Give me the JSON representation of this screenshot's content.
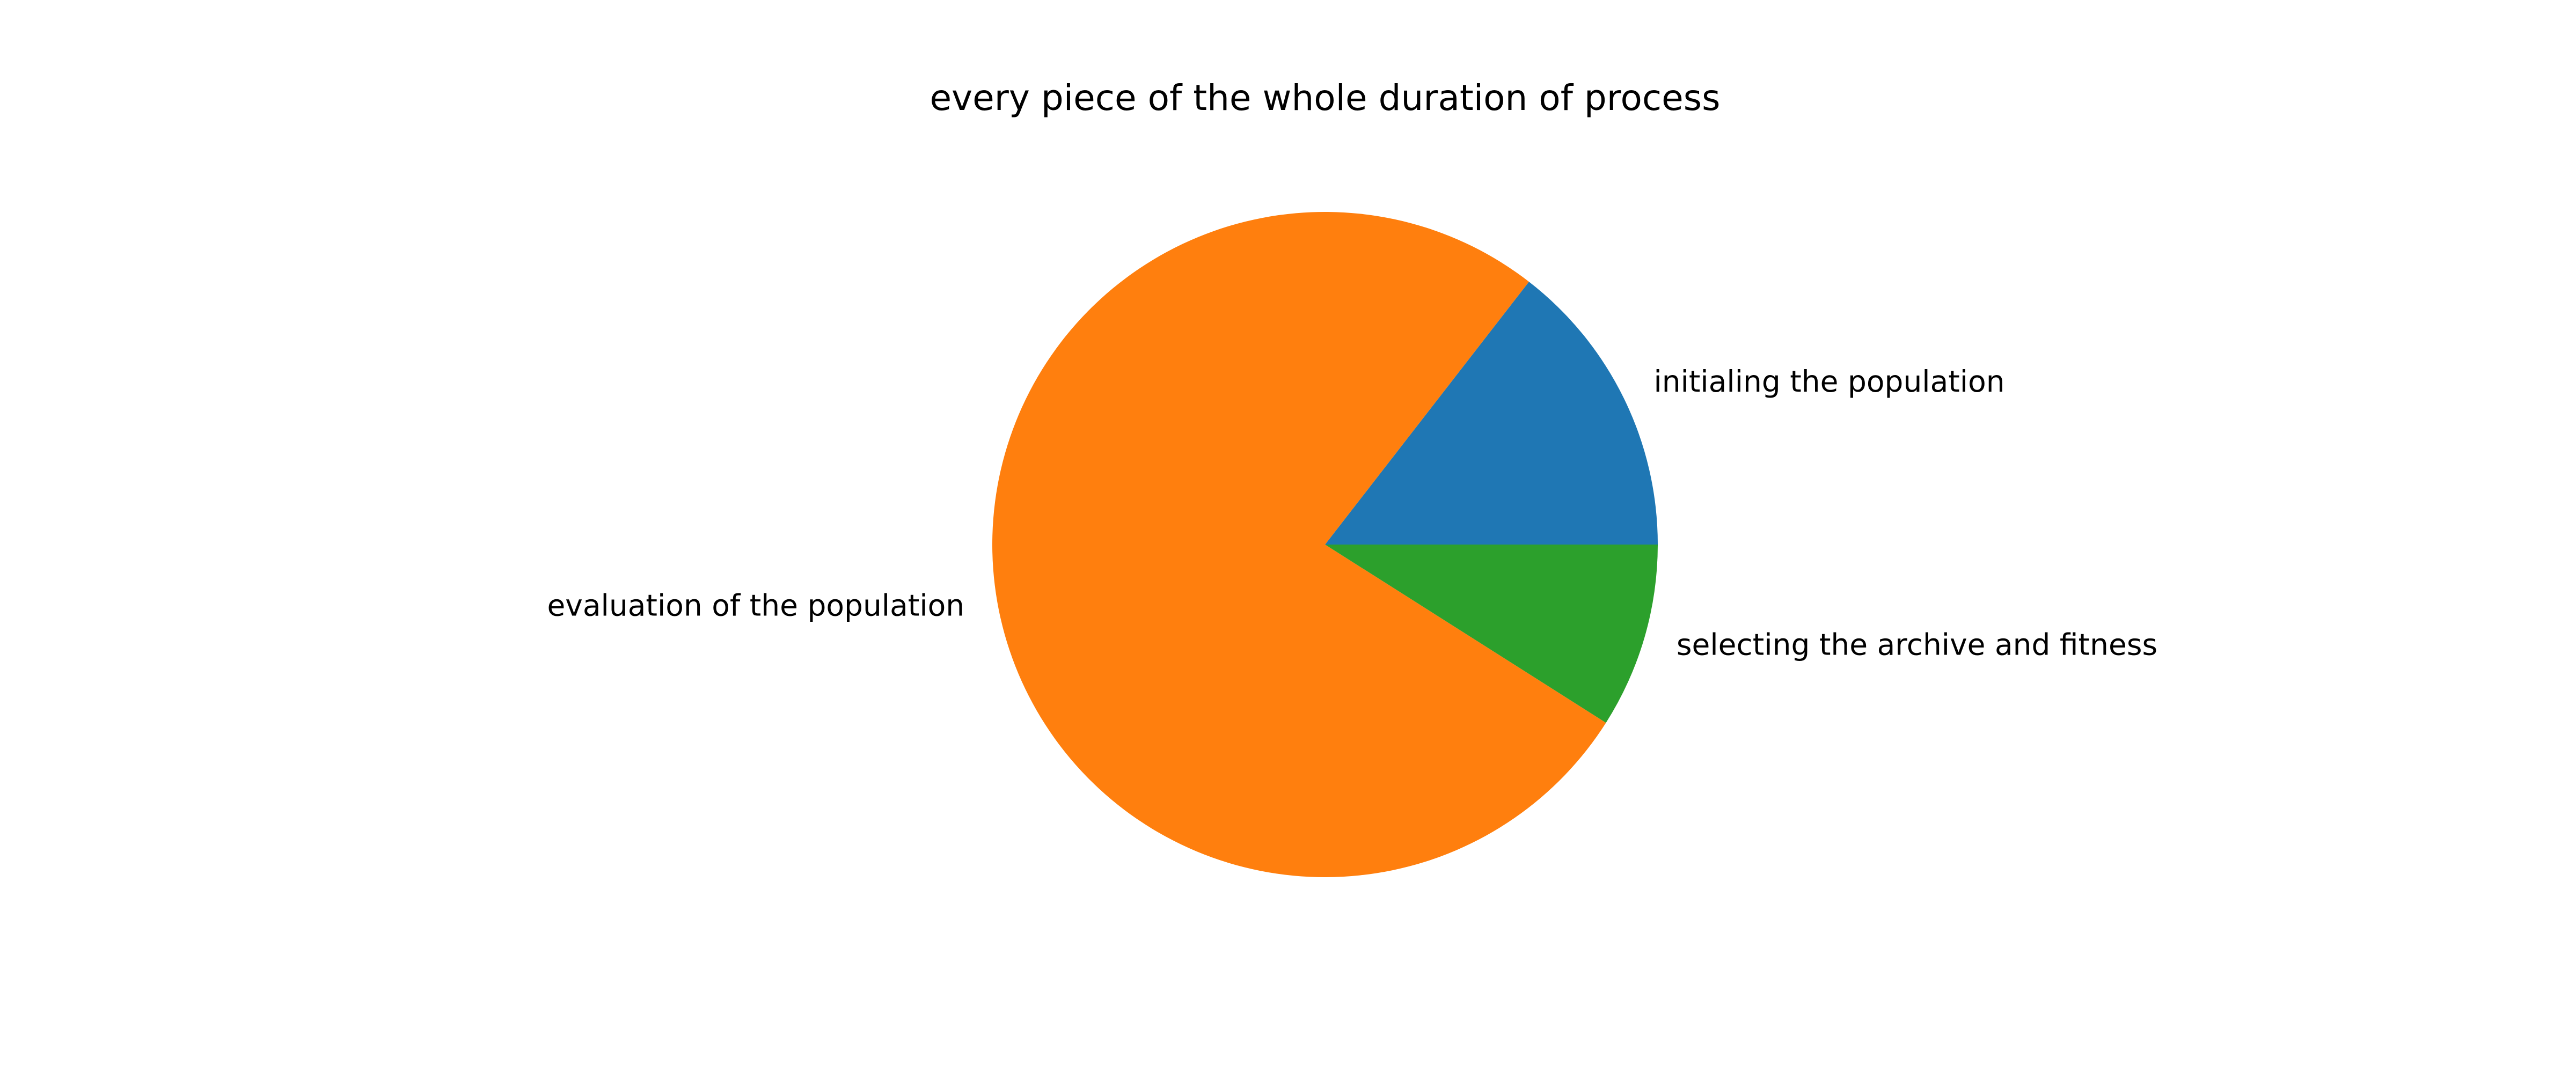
{
  "chart_data": {
    "type": "pie",
    "title": "every piece of the whole duration of process",
    "slices": [
      {
        "label": "initialing the population",
        "value": 14.5,
        "color": "#1f77b4"
      },
      {
        "label": "evaluation of the population",
        "value": 76.5,
        "color": "#ff7f0e"
      },
      {
        "label": "selecting the archive and fitness",
        "value": 9.0,
        "color": "#2ca02c"
      }
    ],
    "start_angle_deg": 0,
    "direction": "counterclockwise",
    "legend": "none"
  }
}
